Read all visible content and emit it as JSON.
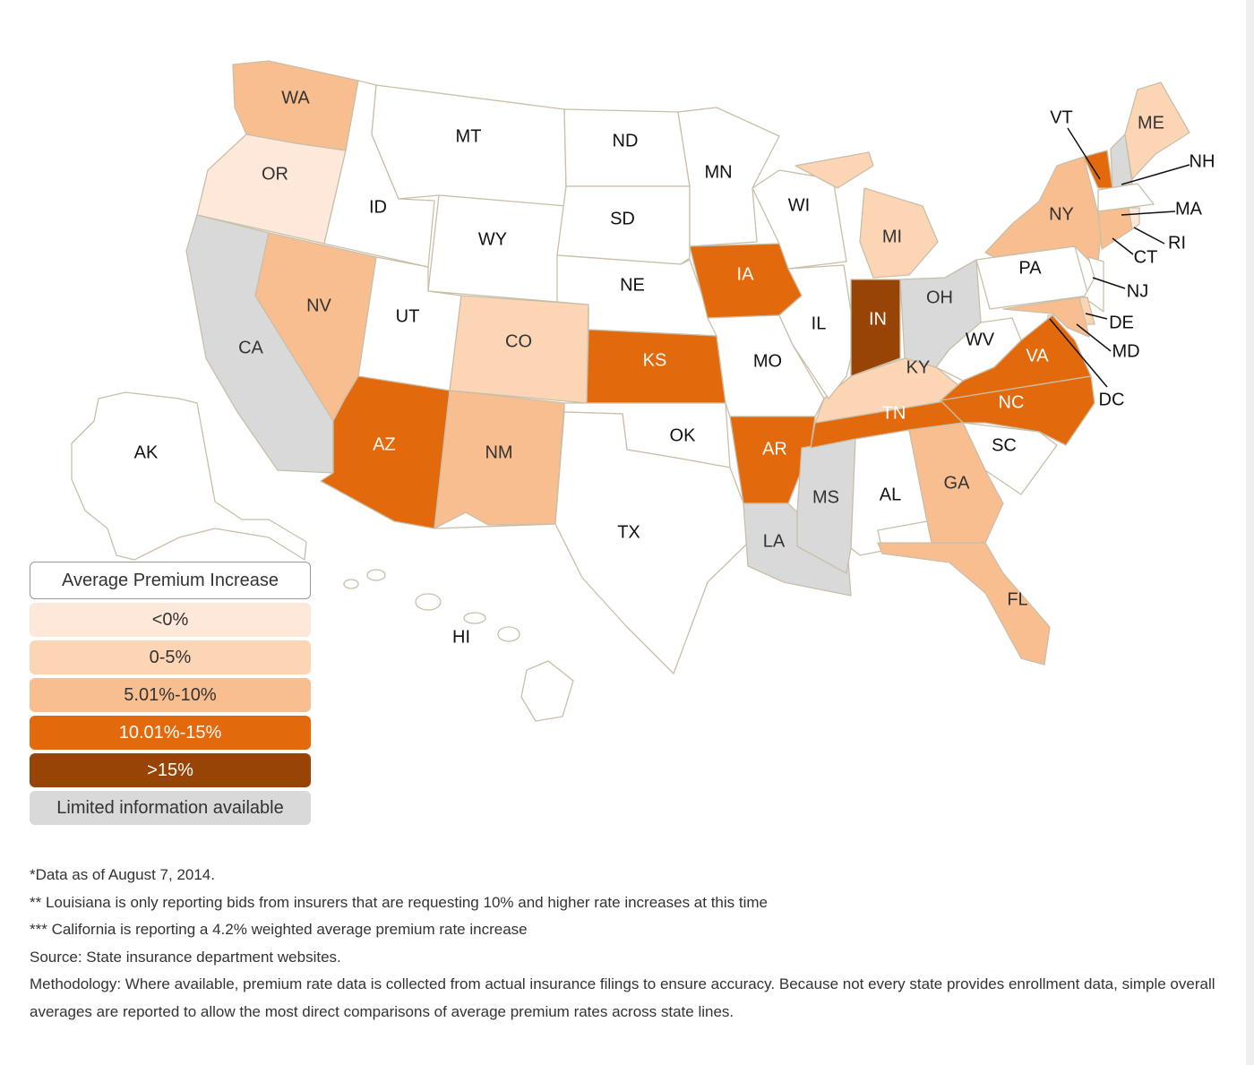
{
  "legend": {
    "title": "Average Premium Increase",
    "items": [
      {
        "key": "lt0",
        "label": "<0%",
        "color": "#fde8da",
        "text_color": "#333333"
      },
      {
        "key": "0to5",
        "label": "0-5%",
        "color": "#fcd5b5",
        "text_color": "#333333"
      },
      {
        "key": "5to10",
        "label": "5.01%-10%",
        "color": "#f9be8f",
        "text_color": "#333333"
      },
      {
        "key": "10to15",
        "label": "10.01%-15%",
        "color": "#e2690c",
        "text_color": "#ffffff"
      },
      {
        "key": "gt15",
        "label": ">15%",
        "color": "#984407",
        "text_color": "#ffffff"
      },
      {
        "key": "limited",
        "label": "Limited information available",
        "color": "#d9d9d9",
        "text_color": "#333333"
      }
    ]
  },
  "no_data_color": "#ffffff",
  "states": [
    {
      "abbr": "WA",
      "category": "5to10"
    },
    {
      "abbr": "OR",
      "category": "lt0"
    },
    {
      "abbr": "CA",
      "category": "limited"
    },
    {
      "abbr": "NV",
      "category": "5to10"
    },
    {
      "abbr": "ID",
      "category": "none"
    },
    {
      "abbr": "MT",
      "category": "none"
    },
    {
      "abbr": "WY",
      "category": "none"
    },
    {
      "abbr": "UT",
      "category": "none"
    },
    {
      "abbr": "CO",
      "category": "0to5"
    },
    {
      "abbr": "AZ",
      "category": "10to15"
    },
    {
      "abbr": "NM",
      "category": "5to10"
    },
    {
      "abbr": "ND",
      "category": "none"
    },
    {
      "abbr": "SD",
      "category": "none"
    },
    {
      "abbr": "NE",
      "category": "none"
    },
    {
      "abbr": "KS",
      "category": "10to15"
    },
    {
      "abbr": "OK",
      "category": "none"
    },
    {
      "abbr": "TX",
      "category": "none"
    },
    {
      "abbr": "MN",
      "category": "none"
    },
    {
      "abbr": "IA",
      "category": "10to15"
    },
    {
      "abbr": "MO",
      "category": "none"
    },
    {
      "abbr": "AR",
      "category": "10to15"
    },
    {
      "abbr": "LA",
      "category": "limited"
    },
    {
      "abbr": "MS",
      "category": "limited"
    },
    {
      "abbr": "AL",
      "category": "none"
    },
    {
      "abbr": "TN",
      "category": "10to15"
    },
    {
      "abbr": "KY",
      "category": "0to5"
    },
    {
      "abbr": "IL",
      "category": "none"
    },
    {
      "abbr": "WI",
      "category": "none"
    },
    {
      "abbr": "MI",
      "category": "0to5"
    },
    {
      "abbr": "IN",
      "category": "gt15"
    },
    {
      "abbr": "OH",
      "category": "limited"
    },
    {
      "abbr": "WV",
      "category": "none"
    },
    {
      "abbr": "PA",
      "category": "none"
    },
    {
      "abbr": "NY",
      "category": "5to10"
    },
    {
      "abbr": "VT",
      "category": "10to15"
    },
    {
      "abbr": "NH",
      "category": "limited"
    },
    {
      "abbr": "ME",
      "category": "0to5"
    },
    {
      "abbr": "MA",
      "category": "none"
    },
    {
      "abbr": "CT",
      "category": "5to10"
    },
    {
      "abbr": "RI",
      "category": "lt0"
    },
    {
      "abbr": "NJ",
      "category": "none"
    },
    {
      "abbr": "DE",
      "category": "0to5"
    },
    {
      "abbr": "MD",
      "category": "5to10"
    },
    {
      "abbr": "DC",
      "category": "none"
    },
    {
      "abbr": "VA",
      "category": "10to15"
    },
    {
      "abbr": "NC",
      "category": "10to15"
    },
    {
      "abbr": "SC",
      "category": "none"
    },
    {
      "abbr": "GA",
      "category": "5to10"
    },
    {
      "abbr": "FL",
      "category": "5to10"
    },
    {
      "abbr": "AK",
      "category": "none"
    },
    {
      "abbr": "HI",
      "category": "none"
    }
  ],
  "notes": [
    "*Data as of August 7, 2014.",
    "** Louisiana is only reporting bids from insurers that are requesting 10% and higher rate increases at this time",
    "*** California is reporting a 4.2% weighted average premium rate increase",
    "Source: State insurance department websites.",
    "Methodology: Where available, premium rate data is collected from actual insurance filings to ensure accuracy. Because not every state provides enrollment data, simple overall averages are reported to allow the most direct comparisons of average premium rates across state lines."
  ]
}
